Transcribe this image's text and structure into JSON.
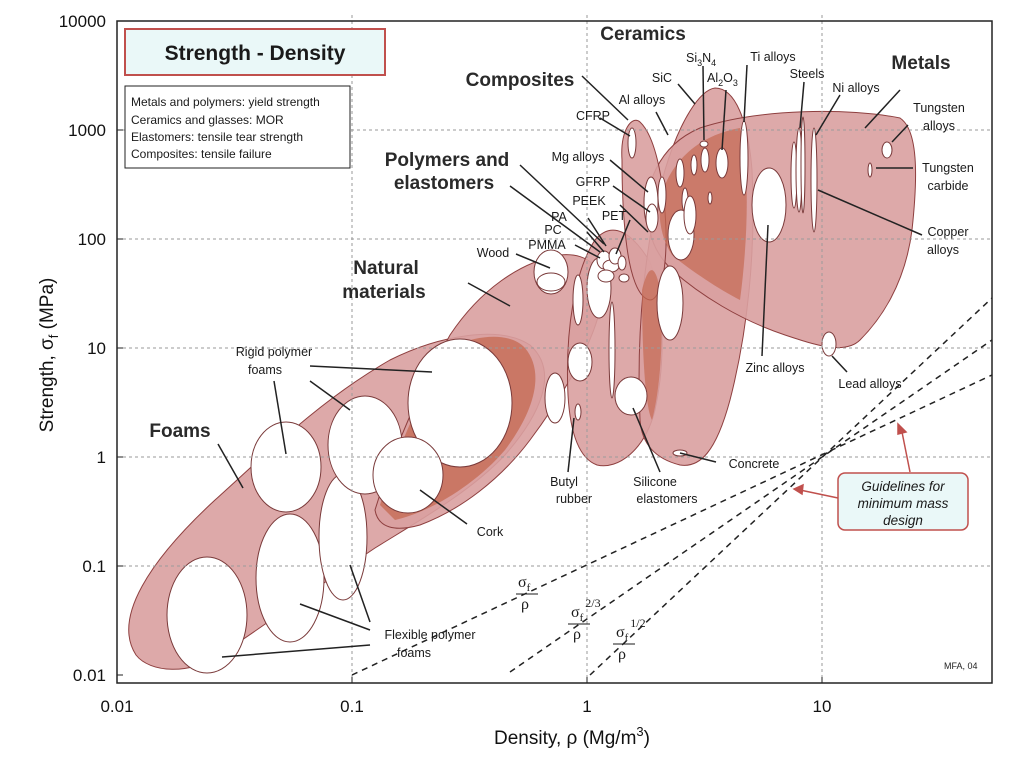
{
  "chart_data": {
    "type": "scatter",
    "title": "Strength - Density",
    "xlabel": "Density, ρ  (Mg/m³)",
    "ylabel": "Strength, σf  (MPa)",
    "x_scale": "log",
    "y_scale": "log",
    "xlim": [
      0.01,
      50
    ],
    "ylim": [
      0.01,
      10000
    ],
    "x_ticks": [
      "0.01",
      "0.1",
      "1",
      "10"
    ],
    "y_ticks": [
      "0.01",
      "0.1",
      "1",
      "10",
      "100",
      "1000",
      "10000"
    ],
    "grid": true,
    "notes": [
      "Metals and polymers: yield strength",
      "Ceramics and glasses: MOR",
      "Elastomers: tensile tear strength",
      "Composites: tensile failure"
    ],
    "families": [
      {
        "name": "Foams",
        "x_range": [
          0.012,
          0.4
        ],
        "y_range": [
          0.01,
          15
        ]
      },
      {
        "name": "Natural materials",
        "x_range": [
          0.09,
          1.5
        ],
        "y_range": [
          0.5,
          130
        ]
      },
      {
        "name": "Polymers and elastomers",
        "x_range": [
          0.85,
          2.3
        ],
        "y_range": [
          0.8,
          200
        ]
      },
      {
        "name": "Composites",
        "x_range": [
          1.5,
          2.1
        ],
        "y_range": [
          40,
          1500
        ]
      },
      {
        "name": "Ceramics",
        "x_range": [
          1.7,
          4.6
        ],
        "y_range": [
          1,
          2500
        ]
      },
      {
        "name": "Metals",
        "x_range": [
          1.7,
          23
        ],
        "y_range": [
          8,
          1500
        ]
      }
    ],
    "materials": [
      {
        "name": "Wood",
        "x": 0.7,
        "y": 45
      },
      {
        "name": "PMMA",
        "x": 1.18,
        "y": 60
      },
      {
        "name": "PA",
        "x": 1.14,
        "y": 70
      },
      {
        "name": "PC",
        "x": 1.2,
        "y": 65
      },
      {
        "name": "PEEK",
        "x": 1.3,
        "y": 90
      },
      {
        "name": "PET",
        "x": 1.38,
        "y": 60
      },
      {
        "name": "CFRP",
        "x": 1.9,
        "y": 800
      },
      {
        "name": "GFRP",
        "x": 1.9,
        "y": 160
      },
      {
        "name": "Mg alloys",
        "x": 1.8,
        "y": 250
      },
      {
        "name": "Al alloys",
        "x": 2.7,
        "y": 300
      },
      {
        "name": "SiC",
        "x": 3.1,
        "y": 600
      },
      {
        "name": "Si3N4",
        "x": 3.2,
        "y": 800
      },
      {
        "name": "Al2O3",
        "x": 3.9,
        "y": 400
      },
      {
        "name": "Ti alloys",
        "x": 4.6,
        "y": 700
      },
      {
        "name": "Steels",
        "x": 7.8,
        "y": 500
      },
      {
        "name": "Ni alloys",
        "x": 8.8,
        "y": 600
      },
      {
        "name": "Copper alloys",
        "x": 8.9,
        "y": 200
      },
      {
        "name": "Zinc alloys",
        "x": 6.5,
        "y": 150
      },
      {
        "name": "Lead alloys",
        "x": 11,
        "y": 12
      },
      {
        "name": "Tungsten alloys",
        "x": 18,
        "y": 700
      },
      {
        "name": "Tungsten carbide",
        "x": 15.5,
        "y": 400
      },
      {
        "name": "Concrete",
        "x": 2.4,
        "y": 1.1
      },
      {
        "name": "Butyl rubber",
        "x": 0.95,
        "y": 2
      },
      {
        "name": "Silicone elastomers",
        "x": 1.45,
        "y": 3
      },
      {
        "name": "Cork",
        "x": 0.18,
        "y": 0.7
      },
      {
        "name": "Rigid polymer foams",
        "x": 0.12,
        "y": 2
      },
      {
        "name": "Flexible polymer foams",
        "x": 0.05,
        "y": 0.2
      }
    ],
    "guidelines": [
      {
        "name": "σf/ρ",
        "slope": 1
      },
      {
        "name": "σf^(2/3)/ρ",
        "slope": 1.5
      },
      {
        "name": "σf^(1/2)/ρ",
        "slope": 2
      }
    ],
    "guidelines_label": "Guidelines for minimum mass design"
  },
  "labels": {
    "title": "Strength - Density",
    "notes": [
      "Metals and polymers: yield strength",
      "Ceramics and glasses: MOR",
      "Elastomers: tensile tear strength",
      "Composites: tensile failure"
    ],
    "x_ticks": [
      "0.01",
      "0.1",
      "1",
      "10"
    ],
    "y_ticks": [
      "10000",
      "1000",
      "100",
      "10",
      "1",
      "0.1",
      "0.01"
    ],
    "x_axis": "Density, ρ  (Mg/m",
    "x_axis_sup": "3",
    "x_axis_end": ")",
    "y_axis": "Strength, σ",
    "y_axis_sub": "f",
    "y_axis_end": "  (MPa)",
    "families": {
      "ceramics": "Ceramics",
      "composites": "Composites",
      "metals": "Metals",
      "polymers_1": "Polymers and",
      "polymers_2": "elastomers",
      "natural_1": "Natural",
      "natural_2": "materials",
      "foams": "Foams"
    },
    "materials": {
      "si3n4": "Si",
      "si3n4_sub1": "3",
      "si3n4_mid": "N",
      "si3n4_sub2": "4",
      "al2o3": "Al",
      "al2o3_sub1": "2",
      "al2o3_mid": "O",
      "al2o3_sub2": "3",
      "sic": "SiC",
      "ti": "Ti alloys",
      "steels": "Steels",
      "ni": "Ni alloys",
      "al": "Al alloys",
      "cfrp": "CFRP",
      "mg": "Mg alloys",
      "gfrp": "GFRP",
      "peek": "PEEK",
      "pa": "PA",
      "pet": "PET",
      "pc": "PC",
      "pmma": "PMMA",
      "wood": "Wood",
      "tungsten_1": "Tungsten",
      "tungsten_2": "alloys",
      "wc_1": "Tungsten",
      "wc_2": "carbide",
      "copper_1": "Copper",
      "copper_2": "alloys",
      "zinc": "Zinc alloys",
      "lead": "Lead alloys",
      "concrete": "Concrete",
      "butyl_1": "Butyl",
      "butyl_2": "rubber",
      "silicone_1": "Silicone",
      "silicone_2": "elastomers",
      "cork": "Cork",
      "rigid_1": "Rigid polymer",
      "rigid_2": "foams",
      "flex_1": "Flexible polymer",
      "flex_2": "foams"
    },
    "guides": {
      "sigma": "σ",
      "f": "f",
      "rho": "ρ",
      "exp23": "2/3",
      "exp12": "1/2"
    },
    "guide_box": [
      "Guidelines for",
      "minimum mass",
      "design"
    ],
    "credit": "MFA,  04"
  },
  "colors": {
    "bubble_fill": "#d9a0a0",
    "bubble_stroke": "#8e3f3f",
    "overlap_fill": "#c46a52",
    "title_box_bg": "#eaf8f8",
    "title_box_border": "#c0504d",
    "guide_box_bg": "#eaf8f8",
    "arrow": "#c0504d",
    "grid": "#9a9a9a",
    "ellipse": "#ffffff"
  }
}
